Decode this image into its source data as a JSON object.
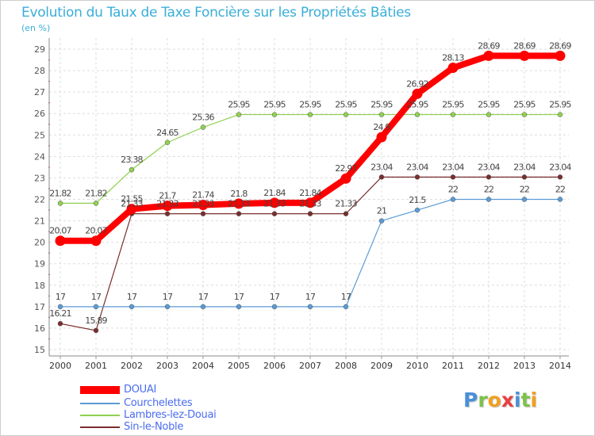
{
  "header": {
    "title": "Evolution du Taux de Taxe Foncière sur les Propriétés Bâties",
    "subtitle": "(en %)"
  },
  "logo": {
    "letters": [
      "P",
      "r",
      "o",
      "x",
      "i",
      "t",
      "i"
    ],
    "colors": [
      "#4a90d9",
      "#7cc24a",
      "#f0a020",
      "#e84040",
      "#4a90d9",
      "#7cc24a",
      "#f0a020"
    ]
  },
  "chart_data": {
    "type": "line",
    "title": "Evolution du Taux de Taxe Foncière sur les Propriétés Bâties",
    "ylabel": "(en %)",
    "xlabel": "",
    "ylim": [
      15,
      29
    ],
    "yticks": [
      "15",
      "16",
      "17",
      "18",
      "19",
      "20",
      "21",
      "22",
      "23",
      "24",
      "25",
      "26",
      "27",
      "28",
      "29"
    ],
    "x": [
      "2000",
      "2001",
      "2002",
      "2003",
      "2004",
      "2005",
      "2006",
      "2007",
      "2008",
      "2009",
      "2010",
      "2011",
      "2012",
      "2013",
      "2014"
    ],
    "grid": true,
    "series": [
      {
        "name": "DOUAI",
        "color": "#ff0000",
        "labels": [
          "20.07",
          "20.07",
          "21.55",
          "21.7",
          "21.74",
          "21.8",
          "21.84",
          "21.84",
          "22.97",
          "24.9",
          "26.92",
          "28.13",
          "28.69",
          "28.69",
          "28.69"
        ],
        "values": [
          20.07,
          20.07,
          21.55,
          21.7,
          21.74,
          21.8,
          21.84,
          21.84,
          22.97,
          24.9,
          26.92,
          28.13,
          28.69,
          28.69,
          28.69
        ]
      },
      {
        "name": "Courchelettes",
        "color": "#5b9bd5",
        "labels": [
          "17",
          "17",
          "17",
          "17",
          "17",
          "17",
          "17",
          "17",
          "17",
          "21",
          "21.5",
          "22",
          "22",
          "22",
          "22"
        ],
        "values": [
          17,
          17,
          17,
          17,
          17,
          17,
          17,
          17,
          17,
          21,
          21.5,
          22,
          22,
          22,
          22
        ]
      },
      {
        "name": "Lambres-lez-Douai",
        "color": "#8fd14f",
        "labels": [
          "21.82",
          "21.82",
          "23.38",
          "24.65",
          "25.36",
          "25.95",
          "25.95",
          "25.95",
          "25.95",
          "25.95",
          "25.95",
          "25.95",
          "25.95",
          "25.95",
          "25.95"
        ],
        "values": [
          21.82,
          21.82,
          23.38,
          24.65,
          25.36,
          25.95,
          25.95,
          25.95,
          25.95,
          25.95,
          25.95,
          25.95,
          25.95,
          25.95,
          25.95
        ]
      },
      {
        "name": "Sin-le-Noble",
        "color": "#7a2e2e",
        "labels": [
          "16.21",
          "15.89",
          "21.33",
          "21.33",
          "21.33",
          "21.33",
          "21.33",
          "21.33",
          "21.33",
          "23.04",
          "23.04",
          "23.04",
          "23.04",
          "23.04",
          "23.04"
        ],
        "values": [
          16.21,
          15.89,
          21.33,
          21.33,
          21.33,
          21.33,
          21.33,
          21.33,
          21.33,
          23.04,
          23.04,
          23.04,
          23.04,
          23.04,
          23.04
        ]
      }
    ]
  }
}
